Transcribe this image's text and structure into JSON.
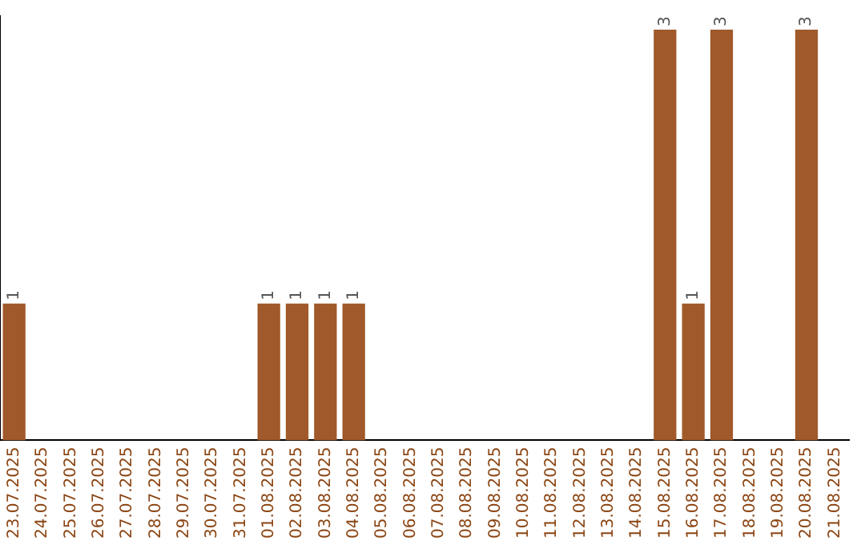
{
  "chart_data": {
    "type": "bar",
    "categories": [
      "23.07.2025",
      "24.07.2025",
      "25.07.2025",
      "26.07.2025",
      "27.07.2025",
      "28.07.2025",
      "29.07.2025",
      "30.07.2025",
      "31.07.2025",
      "01.08.2025",
      "02.08.2025",
      "03.08.2025",
      "04.08.2025",
      "05.08.2025",
      "06.08.2025",
      "07.08.2025",
      "08.08.2025",
      "09.08.2025",
      "10.08.2025",
      "11.08.2025",
      "12.08.2025",
      "13.08.2025",
      "14.08.2025",
      "15.08.2025",
      "16.08.2025",
      "17.08.2025",
      "18.08.2025",
      "19.08.2025",
      "20.08.2025",
      "21.08.2025"
    ],
    "values": [
      1,
      0,
      0,
      0,
      0,
      0,
      0,
      0,
      0,
      1,
      1,
      1,
      1,
      0,
      0,
      0,
      0,
      0,
      0,
      0,
      0,
      0,
      0,
      3,
      1,
      3,
      0,
      0,
      3,
      0
    ],
    "value_labels": [
      "1",
      null,
      null,
      null,
      null,
      null,
      null,
      null,
      null,
      "1",
      "1",
      "1",
      "1",
      null,
      null,
      null,
      null,
      null,
      null,
      null,
      null,
      null,
      null,
      "3",
      "1",
      "3",
      null,
      null,
      "3",
      null
    ],
    "color": "#a0592a",
    "ylim": [
      0,
      3.1
    ],
    "tick_labels": "x",
    "grid": false,
    "legend": false
  }
}
